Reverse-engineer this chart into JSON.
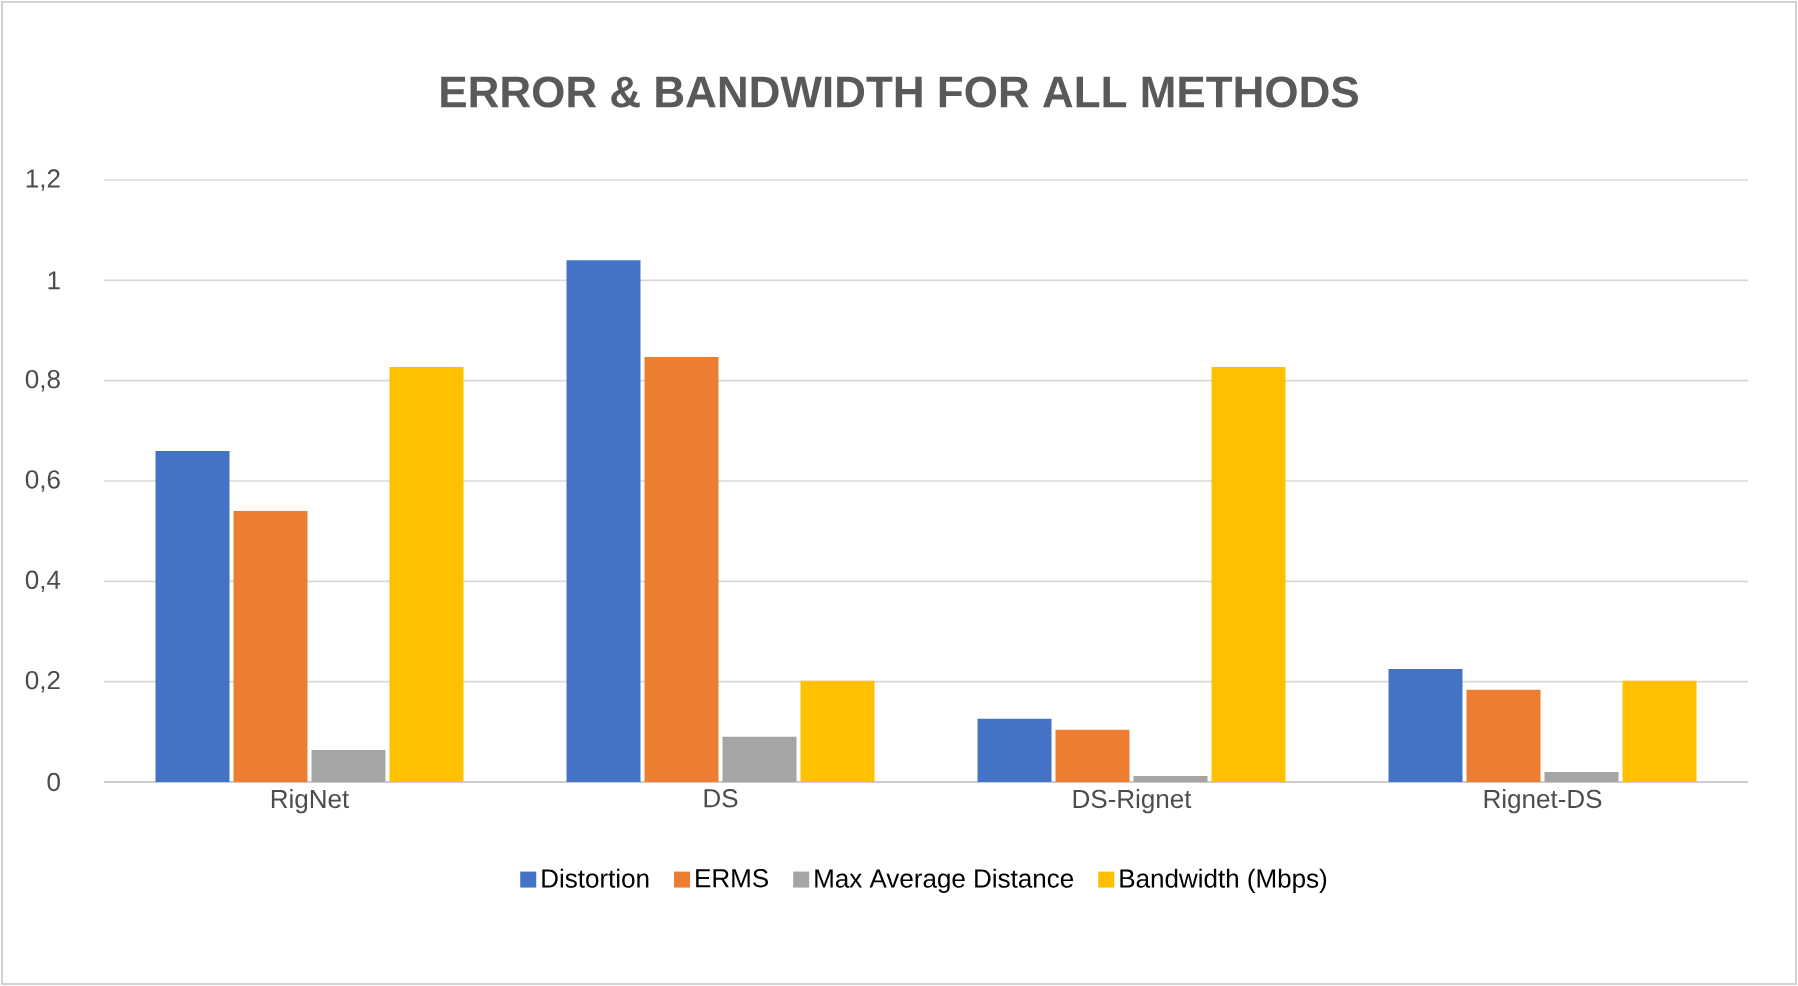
{
  "chart_data": {
    "type": "bar",
    "title": "ERROR & BANDWIDTH FOR ALL METHODS",
    "categories": [
      "RigNet",
      "DS",
      "DS-Rignet",
      "Rignet-DS"
    ],
    "series": [
      {
        "name": "Distortion",
        "color": "#4472c4",
        "values": [
          0.66,
          1.04,
          0.126,
          0.225
        ]
      },
      {
        "name": "ERMS",
        "color": "#ed7d31",
        "values": [
          0.54,
          0.847,
          0.104,
          0.184
        ]
      },
      {
        "name": "Max Average Distance",
        "color": "#a5a5a5",
        "values": [
          0.064,
          0.09,
          0.012,
          0.02
        ]
      },
      {
        "name": "Bandwidth (Mbps)",
        "color": "#ffc000",
        "values": [
          0.827,
          0.202,
          0.827,
          0.202
        ]
      }
    ],
    "ylim": [
      0,
      1.2
    ],
    "yticks": [
      0,
      {
        "value": 0.2,
        "label": "0,2"
      },
      {
        "value": 0.4,
        "label": "0,4"
      },
      {
        "value": 0.6,
        "label": "0,6"
      },
      {
        "value": 0.8,
        "label": "0,8"
      },
      1,
      {
        "value": 1.2,
        "label": "1,2"
      }
    ],
    "grid": "y",
    "legend": "bottom"
  }
}
